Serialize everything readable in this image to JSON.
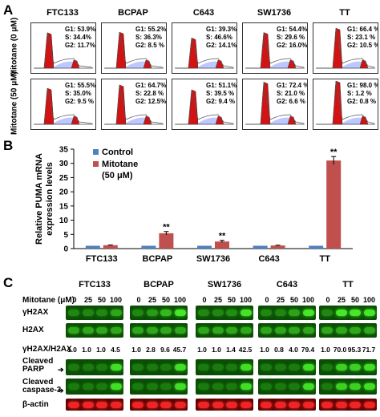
{
  "panel_a": {
    "label": "A",
    "cell_lines": [
      "FTC133",
      "BCPAP",
      "C643",
      "SW1736",
      "TT"
    ],
    "row_labels": [
      "Mitotane (0 μM)",
      "Mitotane (50 μM)"
    ],
    "stats": [
      [
        [
          "G1: 53.9%",
          "S: 34.4%",
          "G2: 11.7%"
        ],
        [
          "G1: 55.2%",
          "S: 36.3%",
          "G2: 8.5 %"
        ],
        [
          "G1: 39.3%",
          "S: 46.6%",
          "G2: 14.1%"
        ],
        [
          "G1: 54.4%",
          "S: 29.6 %",
          "G2: 16.0%"
        ],
        [
          "G1: 66.4 %",
          "S: 23.1 %",
          "G2: 10.5 %"
        ]
      ],
      [
        [
          "G1: 55.5%",
          "S: 35.0%",
          "G2: 9.5 %"
        ],
        [
          "G1: 64.7%",
          "S: 22.8 %",
          "G2: 12.5%"
        ],
        [
          "G1: 51.1%",
          "S: 39.5 %",
          "G2: 9.4 %"
        ],
        [
          "G1: 72.4 %",
          "S: 21.0 %",
          "G2: 6.6 %"
        ],
        [
          "G1: 98.0 %",
          "S: 1.2 %",
          "G2: 0.8 %"
        ]
      ]
    ]
  },
  "panel_b": {
    "label": "B",
    "chart_data": {
      "type": "bar",
      "categories": [
        "FTC133",
        "BCPAP",
        "SW1736",
        "C643",
        "TT"
      ],
      "series": [
        {
          "name": "Control",
          "values": [
            1,
            1,
            1,
            1,
            1
          ],
          "color": "#4f81bd"
        },
        {
          "name": "Mitotane (50 μM)",
          "values": [
            1.2,
            5.4,
            2.5,
            1.1,
            31
          ],
          "errors": [
            0.1,
            0.6,
            0.4,
            0.1,
            1.4
          ],
          "color": "#c0504d"
        }
      ],
      "ylabel": "Relative PUMA mRNA expression levels",
      "ylim": [
        0,
        35
      ],
      "yticks": [
        0,
        5,
        10,
        15,
        20,
        25,
        30,
        35
      ],
      "significance": [
        "",
        "**",
        "**",
        "",
        "**"
      ],
      "legend_position": "top-left"
    }
  },
  "panel_c": {
    "label": "C",
    "treatment_label": "Mitotane (μM)",
    "cell_lines": [
      "FTC133",
      "BCPAP",
      "SW1736",
      "C643",
      "TT"
    ],
    "doses": [
      "0",
      "25",
      "50",
      "100"
    ],
    "rows": [
      {
        "label": "γH2AX",
        "color": "green"
      },
      {
        "label": "H2AX",
        "color": "green"
      },
      {
        "label": "Cleaved PARP",
        "color": "green"
      },
      {
        "label": "Cleaved caspase-3",
        "color": "green"
      },
      {
        "label": "β-actin",
        "color": "red"
      }
    ],
    "ratio_label": "γH2AX/H2AX",
    "ratios": [
      [
        "1.0",
        "1.0",
        "1.0",
        "4.5"
      ],
      [
        "1.0",
        "2.8",
        "9.6",
        "45.7"
      ],
      [
        "1.0",
        "1.0",
        "1.4",
        "42.5"
      ],
      [
        "1.0",
        "0.8",
        "4.0",
        "79.4"
      ],
      [
        "1.0",
        "70.0",
        "95.3",
        "71.7"
      ]
    ]
  }
}
